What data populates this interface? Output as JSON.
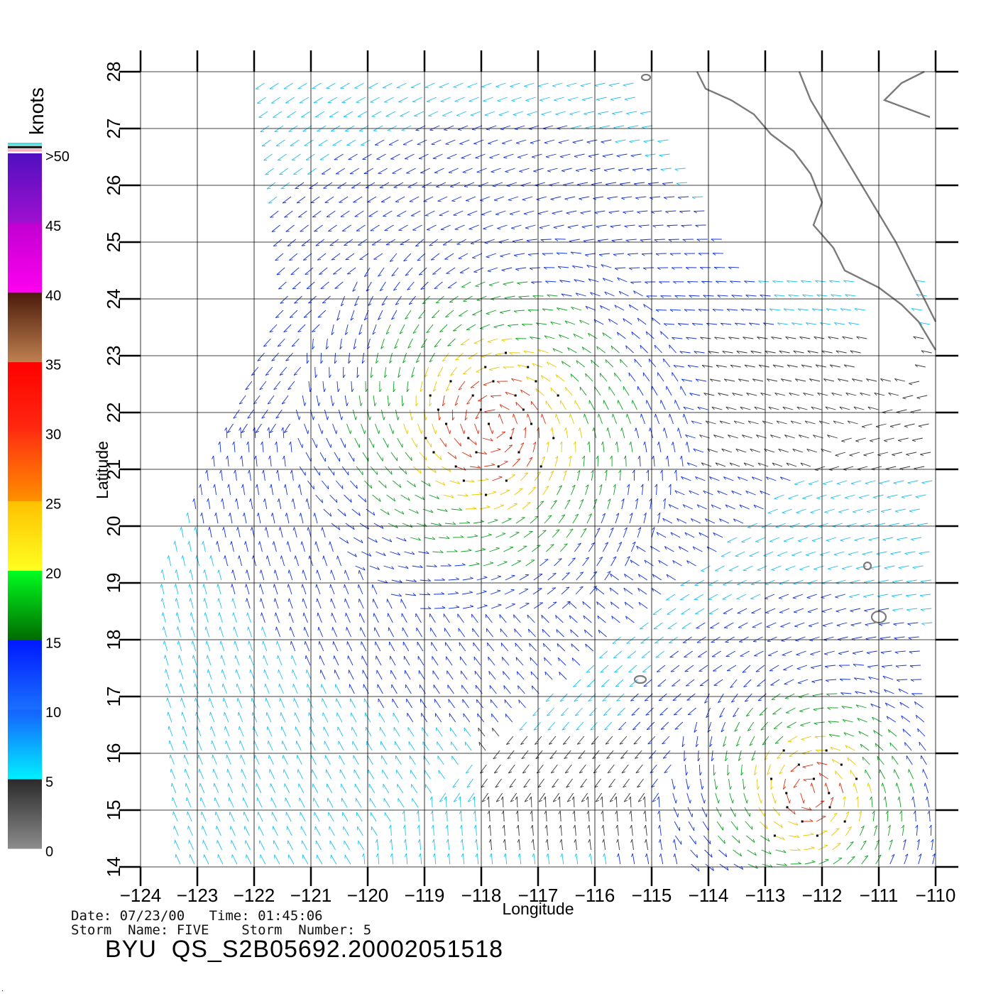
{
  "colors": {
    "frame": "#000000",
    "coastline": "#7a7a7a",
    "calm": "#333333",
    "light": "#1fc0f0",
    "moderate": "#1030d8",
    "fresh": "#10a020",
    "strong": "#e8c800",
    "gale": "#d83010",
    "rain_flag": "#000000"
  },
  "legend": {
    "units": "knots",
    "labels": [
      "0",
      "5",
      "10",
      "15",
      "20",
      "25",
      "30",
      "35",
      "40",
      "45",
      ">50"
    ],
    "bands": [
      {
        "from": 0,
        "to": 5,
        "top": "#2a2a2a",
        "bottom": "#8c8c8c"
      },
      {
        "from": 5,
        "to": 10,
        "top": "#1560ff",
        "bottom": "#00f0ff"
      },
      {
        "from": 10,
        "to": 15,
        "top": "#0018ff",
        "bottom": "#1a70ff"
      },
      {
        "from": 15,
        "to": 20,
        "top": "#00ff20",
        "bottom": "#006a00"
      },
      {
        "from": 20,
        "to": 25,
        "top": "#ffc000",
        "bottom": "#ffff20"
      },
      {
        "from": 25,
        "to": 30,
        "top": "#ff3010",
        "bottom": "#ff9000"
      },
      {
        "from": 30,
        "to": 35,
        "top": "#ff0000",
        "bottom": "#ff2a10"
      },
      {
        "from": 35,
        "to": 40,
        "top": "#4a1a0a",
        "bottom": "#c08050"
      },
      {
        "from": 40,
        "to": 45,
        "top": "#c000d0",
        "bottom": "#ff00f0"
      },
      {
        "from": 45,
        "to": 50,
        "top": "#5010c0",
        "bottom": "#a010d0"
      }
    ],
    "cap_stripes": [
      "#40e0e0",
      "#202020",
      "#f0b0c0"
    ]
  },
  "map": {
    "lon_range": [
      -124,
      -110
    ],
    "lat_range": [
      14,
      28
    ],
    "lon_ticks": [
      "-124",
      "-123",
      "-122",
      "-121",
      "-120",
      "-119",
      "-118",
      "-117",
      "-116",
      "-115",
      "-114",
      "-113",
      "-112",
      "-111",
      "-110"
    ],
    "lat_ticks": [
      "14",
      "15",
      "16",
      "17",
      "18",
      "19",
      "20",
      "21",
      "22",
      "23",
      "24",
      "25",
      "26",
      "27",
      "28"
    ],
    "xlabel": "Longitude",
    "ylabel": "Latitude",
    "storm_centers": [
      {
        "lon": -117.8,
        "lat": 21.8
      },
      {
        "lon": -112.2,
        "lat": 15.3
      }
    ]
  },
  "info": {
    "line1": "Date: 07/23/00   Time: 01:45:06",
    "line2": "Storm  Name: FIVE    Storm  Number: 5",
    "title": "BYU  QS_S2B05692.20002051518"
  },
  "footer": {
    "corner_mark": "."
  }
}
